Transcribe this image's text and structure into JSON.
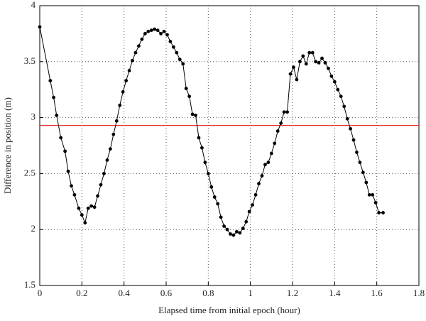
{
  "chart_data": {
    "type": "line",
    "xlabel": "Elapsed time from initial epoch (hour)",
    "ylabel": "Difference in position (m)",
    "xlim": [
      0,
      1.8
    ],
    "xticks": [
      0,
      0.2,
      0.4,
      0.6,
      0.8,
      1,
      1.2,
      1.4,
      1.6,
      1.8
    ],
    "ylim": [
      1.5,
      4
    ],
    "yticks": [
      1.5,
      2,
      2.5,
      3,
      3.5,
      4
    ],
    "grid": true,
    "reference_line": {
      "value": 2.93,
      "color": "#e8312f"
    },
    "series": [
      {
        "color": "#000000",
        "x": [
          0,
          0.05,
          0.066,
          0.08,
          0.1,
          0.12,
          0.135,
          0.15,
          0.165,
          0.185,
          0.2,
          0.215,
          0.23,
          0.245,
          0.26,
          0.275,
          0.29,
          0.305,
          0.32,
          0.335,
          0.35,
          0.365,
          0.38,
          0.395,
          0.41,
          0.425,
          0.44,
          0.455,
          0.47,
          0.485,
          0.5,
          0.515,
          0.53,
          0.545,
          0.56,
          0.575,
          0.59,
          0.605,
          0.62,
          0.635,
          0.65,
          0.665,
          0.68,
          0.695,
          0.71,
          0.725,
          0.74,
          0.755,
          0.77,
          0.785,
          0.8,
          0.815,
          0.83,
          0.845,
          0.86,
          0.875,
          0.89,
          0.905,
          0.92,
          0.935,
          0.95,
          0.965,
          0.98,
          0.995,
          1.01,
          1.025,
          1.04,
          1.055,
          1.07,
          1.085,
          1.1,
          1.115,
          1.13,
          1.145,
          1.16,
          1.175,
          1.19,
          1.205,
          1.22,
          1.235,
          1.25,
          1.265,
          1.28,
          1.295,
          1.31,
          1.325,
          1.34,
          1.355,
          1.37,
          1.385,
          1.4,
          1.415,
          1.43,
          1.445,
          1.46,
          1.475,
          1.49,
          1.505,
          1.52,
          1.535,
          1.55,
          1.565,
          1.58,
          1.595,
          1.61,
          1.63
        ],
        "values": [
          3.81,
          3.33,
          3.18,
          3.02,
          2.82,
          2.7,
          2.52,
          2.39,
          2.31,
          2.19,
          2.13,
          2.06,
          2.19,
          2.21,
          2.2,
          2.3,
          2.4,
          2.5,
          2.62,
          2.72,
          2.85,
          2.97,
          3.11,
          3.23,
          3.33,
          3.42,
          3.51,
          3.58,
          3.64,
          3.7,
          3.75,
          3.77,
          3.78,
          3.79,
          3.78,
          3.75,
          3.77,
          3.74,
          3.68,
          3.63,
          3.58,
          3.52,
          3.48,
          3.26,
          3.19,
          3.03,
          3.02,
          2.82,
          2.73,
          2.6,
          2.5,
          2.38,
          2.29,
          2.23,
          2.11,
          2.03,
          2.0,
          1.96,
          1.95,
          1.98,
          1.97,
          2.01,
          2.07,
          2.16,
          2.22,
          2.31,
          2.41,
          2.48,
          2.58,
          2.6,
          2.68,
          2.77,
          2.88,
          2.95,
          3.05,
          3.05,
          3.39,
          3.45,
          3.34,
          3.5,
          3.55,
          3.48,
          3.58,
          3.58,
          3.5,
          3.49,
          3.53,
          3.49,
          3.44,
          3.37,
          3.32,
          3.25,
          3.19,
          3.1,
          2.99,
          2.9,
          2.8,
          2.69,
          2.6,
          2.51,
          2.42,
          2.31,
          2.31,
          2.24,
          2.15,
          2.15
        ]
      }
    ]
  }
}
